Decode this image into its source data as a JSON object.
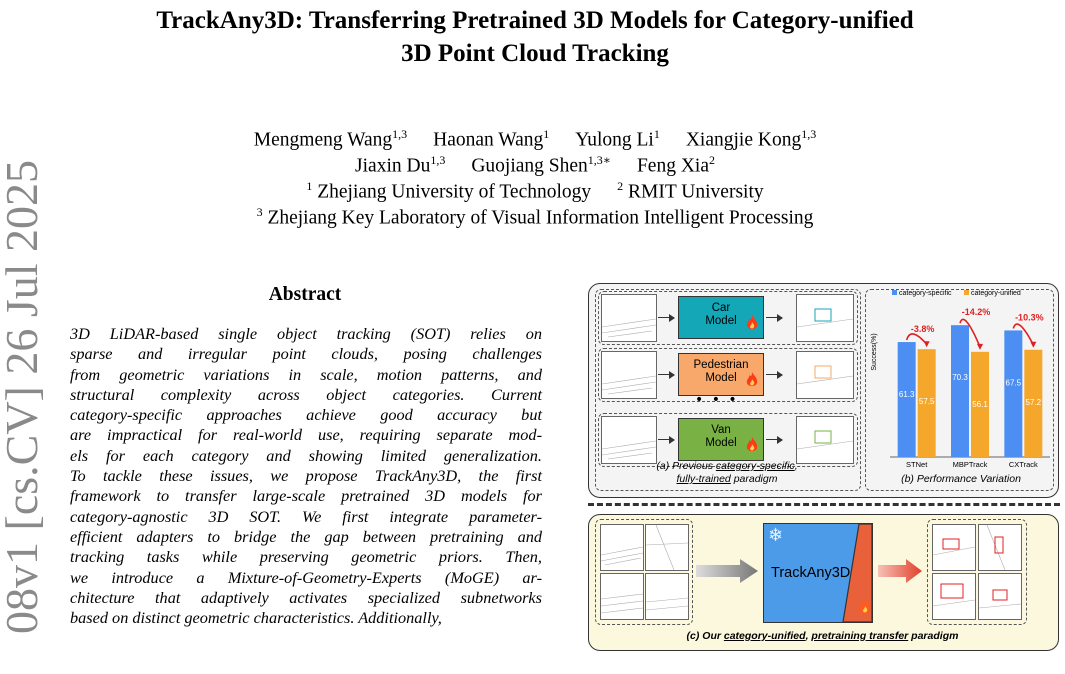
{
  "side_stamp": "08v1 [cs.CV] 26 Jul 2025",
  "title": {
    "line1": "TrackAny3D: Transferring Pretrained 3D Models for Category-unified",
    "line2": "3D Point Cloud Tracking"
  },
  "authors": {
    "line1": [
      {
        "name": "Mengmeng Wang",
        "sup": "1,3"
      },
      {
        "name": "Haonan Wang",
        "sup": "1"
      },
      {
        "name": "Yulong Li",
        "sup": "1"
      },
      {
        "name": "Xiangjie Kong",
        "sup": "1,3"
      }
    ],
    "line2": [
      {
        "name": "Jiaxin Du",
        "sup": "1,3"
      },
      {
        "name": "Guojiang Shen",
        "sup": "1,3∗"
      },
      {
        "name": "Feng Xia",
        "sup": "2"
      }
    ],
    "affil1": [
      {
        "sup": "1",
        "name": "Zhejiang University of Technology"
      },
      {
        "sup": "2",
        "name": "RMIT University"
      }
    ],
    "affil2": {
      "sup": "3",
      "name": "Zhejiang Key Laboratory of Visual Information Intelligent Processing"
    }
  },
  "abstract": {
    "heading": "Abstract",
    "lines": [
      "3D LiDAR-based single object tracking (SOT) relies on",
      "sparse and irregular point clouds, posing challenges",
      "from geometric variations in scale, motion patterns, and",
      "structural complexity across object categories.  Current",
      "category-specific approaches achieve good accuracy but",
      "are impractical for real-world use, requiring separate mod-",
      "els for each category and showing limited generalization.",
      "To tackle these issues, we propose TrackAny3D, the first",
      "framework to transfer large-scale pretrained 3D models for",
      "category-agnostic 3D SOT. We first integrate parameter-",
      "efficient adapters to bridge the gap between pretraining and",
      "tracking tasks while preserving geometric priors.  Then,",
      "we introduce a Mixture-of-Geometry-Experts (MoGE) ar-",
      "chitecture that adaptively activates specialized subnetworks",
      "based on distinct geometric characteristics. Additionally,"
    ]
  },
  "figure": {
    "models": [
      {
        "label1": "Car",
        "label2": "Model",
        "color": "#14a7b8"
      },
      {
        "label1": "Pedestrian",
        "label2": "Model",
        "color": "#f7a86a"
      },
      {
        "label1": "Van",
        "label2": "Model",
        "color": "#7ab144"
      }
    ],
    "dots": "• • •",
    "caption_a": {
      "prefix": "(a) Previous ",
      "u1": "category-specific",
      "comma": ",",
      "u2": "fully-trained",
      "suffix": " paradigm"
    },
    "caption_b": "(b) Performance  Variation",
    "caption_c": {
      "prefix": "(c) Our ",
      "u1": "category-unified",
      "comma": ", ",
      "u2": "pretraining transfer",
      "suffix": " paradigm"
    },
    "trackany_label": "TrackAny3D",
    "snowflake": "❄",
    "accent_colors": {
      "blue": "#4c8ef2",
      "orange": "#f4a72a",
      "red": "#e02020",
      "teal": "#14a7b8"
    }
  },
  "chart_data": {
    "type": "bar",
    "ylabel": "Success(%)",
    "categories": [
      "STNet",
      "MBPTrack",
      "CXTrack"
    ],
    "series": [
      {
        "name": "category-specific",
        "color": "#4c8ef2",
        "values": [
          61.3,
          70.3,
          67.5
        ]
      },
      {
        "name": "category-unified",
        "color": "#f4a72a",
        "values": [
          57.5,
          56.1,
          57.2
        ]
      }
    ],
    "drops": [
      "-3.8%",
      "-14.2%",
      "-10.3%"
    ],
    "ylim": [
      0,
      80
    ],
    "legend": "top"
  }
}
